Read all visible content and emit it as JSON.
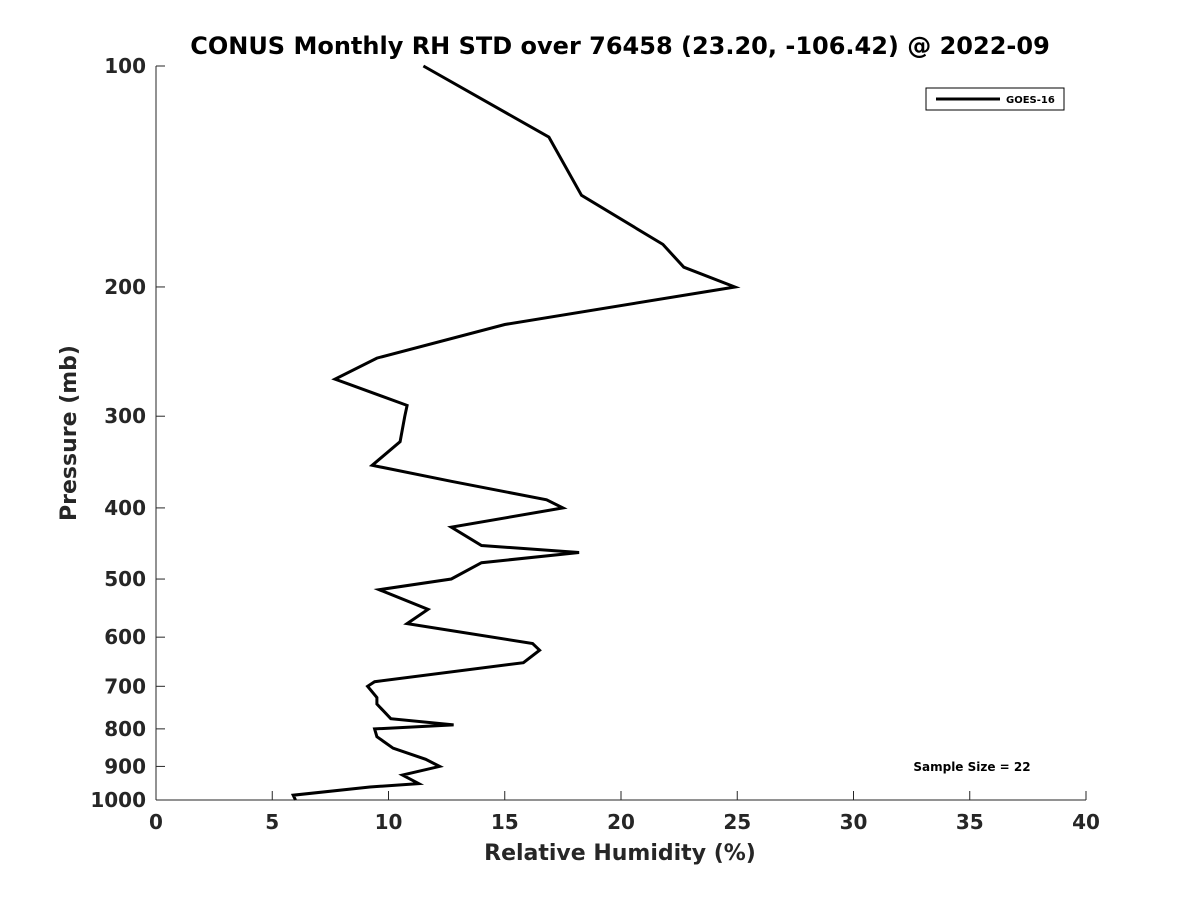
{
  "chart_data": {
    "type": "line",
    "title": "CONUS Monthly RH STD over 76458 (23.20, -106.42) @ 2022-09",
    "xlabel": "Relative Humidity (%)",
    "ylabel": "Pressure (mb)",
    "xlim": [
      0,
      40
    ],
    "ylim": [
      100,
      1000
    ],
    "y_scale": "log",
    "y_reversed": true,
    "x_ticks": [
      "0",
      "5",
      "10",
      "15",
      "20",
      "25",
      "30",
      "35",
      "40"
    ],
    "y_ticks": [
      "100",
      "200",
      "300",
      "400",
      "500",
      "600",
      "700",
      "800",
      "900",
      "1000"
    ],
    "grid": false,
    "legend_position": "top-right",
    "annotation": "Sample Size = 22",
    "series": [
      {
        "name": "GOES-16",
        "color": "#000000",
        "points": [
          [
            11.5,
            100
          ],
          [
            16.9,
            125
          ],
          [
            18.3,
            150
          ],
          [
            21.8,
            175
          ],
          [
            22.7,
            188
          ],
          [
            24.9,
            200
          ],
          [
            15.0,
            225
          ],
          [
            9.5,
            250
          ],
          [
            7.7,
            267
          ],
          [
            10.8,
            290
          ],
          [
            10.7,
            300
          ],
          [
            10.5,
            325
          ],
          [
            9.3,
            350
          ],
          [
            12.7,
            368
          ],
          [
            16.8,
            390
          ],
          [
            17.5,
            400
          ],
          [
            12.7,
            425
          ],
          [
            14.0,
            450
          ],
          [
            18.2,
            460
          ],
          [
            14.0,
            475
          ],
          [
            12.7,
            500
          ],
          [
            9.6,
            517
          ],
          [
            11.7,
            550
          ],
          [
            10.8,
            575
          ],
          [
            16.2,
            612
          ],
          [
            16.5,
            625
          ],
          [
            15.8,
            650
          ],
          [
            9.4,
            690
          ],
          [
            9.1,
            700
          ],
          [
            9.5,
            725
          ],
          [
            9.5,
            740
          ],
          [
            10.1,
            775
          ],
          [
            12.8,
            790
          ],
          [
            9.4,
            800
          ],
          [
            9.5,
            820
          ],
          [
            10.2,
            850
          ],
          [
            11.6,
            880
          ],
          [
            12.2,
            900
          ],
          [
            10.6,
            925
          ],
          [
            11.3,
            950
          ],
          [
            9.2,
            960
          ],
          [
            5.9,
            985
          ],
          [
            6.0,
            1000
          ]
        ]
      }
    ]
  }
}
